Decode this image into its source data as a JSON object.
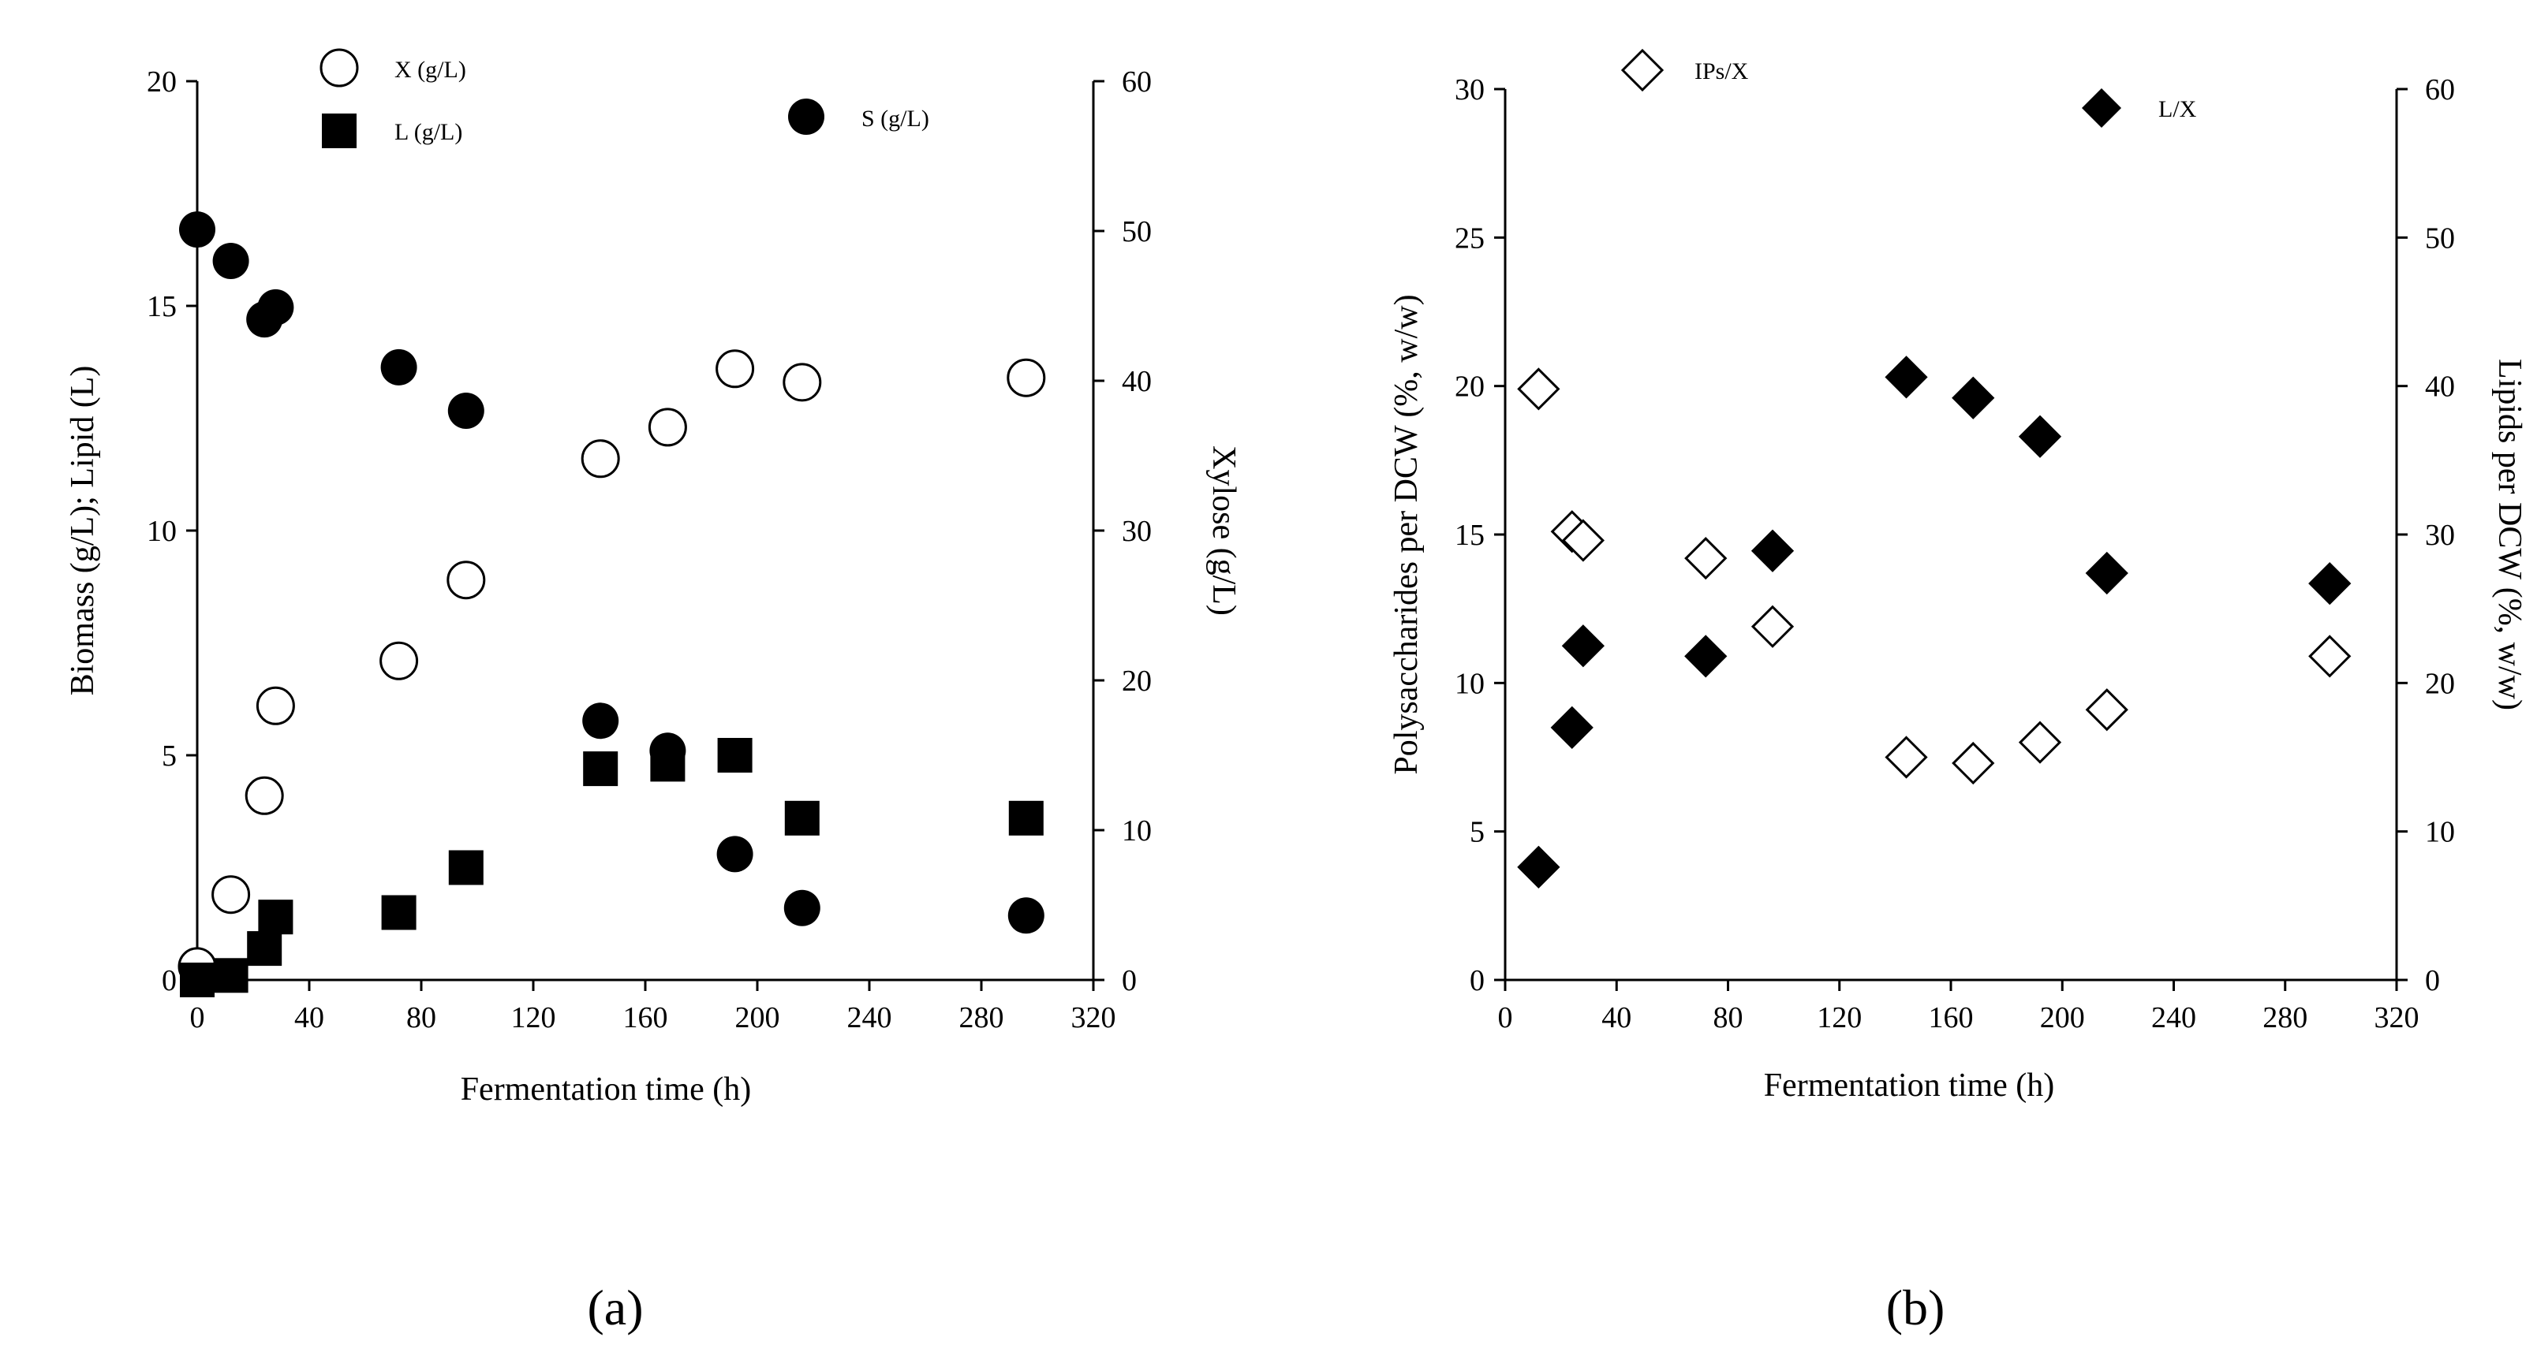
{
  "chart_data": [
    {
      "id": "a",
      "type": "scatter",
      "panel_label": "(a)",
      "xlabel": "Fermentation time (h)",
      "ylabel": "Biomass (g/L); Lipid (L)",
      "y2label": "Xylose (g/L)",
      "xlim": [
        0,
        320
      ],
      "ylim": [
        0,
        20
      ],
      "y2lim": [
        0,
        60
      ],
      "xticks": [
        "0",
        "40",
        "80",
        "120",
        "160",
        "200",
        "240",
        "280",
        "320"
      ],
      "yticks": [
        "0",
        "5",
        "10",
        "15",
        "20"
      ],
      "y2ticks": [
        "0",
        "10",
        "20",
        "30",
        "40",
        "50",
        "60"
      ],
      "legend_placement": "top",
      "series": [
        {
          "name": "X (g/L)",
          "marker": "circle-open",
          "axis": "left",
          "x": [
            0,
            12,
            24,
            28,
            72,
            96,
            144,
            168,
            192,
            216,
            296
          ],
          "y": [
            0.3,
            1.9,
            4.1,
            6.1,
            7.1,
            8.9,
            11.6,
            12.3,
            13.6,
            13.3,
            13.4
          ]
        },
        {
          "name": "L (g/L)",
          "marker": "square-filled",
          "axis": "left",
          "x": [
            0,
            12,
            24,
            28,
            72,
            96,
            144,
            168,
            192,
            216,
            296
          ],
          "y": [
            0,
            0.1,
            0.7,
            1.4,
            1.5,
            2.5,
            4.7,
            4.8,
            5.0,
            3.6,
            3.6
          ]
        },
        {
          "name": "S (g/L)",
          "marker": "circle-filled",
          "axis": "right",
          "x": [
            0,
            12,
            24,
            28,
            72,
            96,
            144,
            168,
            192,
            216,
            296
          ],
          "y": [
            50.1,
            48.0,
            44.1,
            44.9,
            40.9,
            38.0,
            17.3,
            15.3,
            8.4,
            4.8,
            4.3
          ]
        }
      ]
    },
    {
      "id": "b",
      "type": "scatter",
      "panel_label": "(b)",
      "xlabel": "Fermentation time (h)",
      "ylabel": "Polysaccharides per DCW (%, w/w)",
      "y2label": "Lipids per DCW (%, w/w)",
      "xlim": [
        0,
        320
      ],
      "ylim": [
        0,
        30
      ],
      "y2lim": [
        0,
        60
      ],
      "xticks": [
        "0",
        "40",
        "80",
        "120",
        "160",
        "200",
        "240",
        "280",
        "320"
      ],
      "yticks": [
        "0",
        "5",
        "10",
        "15",
        "20",
        "25",
        "30"
      ],
      "y2ticks": [
        "0",
        "10",
        "20",
        "30",
        "40",
        "50",
        "60"
      ],
      "legend_placement": "top",
      "series": [
        {
          "name": "IPs/X",
          "marker": "diamond-open",
          "axis": "left",
          "x": [
            12,
            24,
            28,
            72,
            96,
            144,
            168,
            192,
            216,
            296
          ],
          "y": [
            19.9,
            15.1,
            14.8,
            14.2,
            11.9,
            7.5,
            7.3,
            8.0,
            9.1,
            10.9
          ]
        },
        {
          "name": "L/X",
          "marker": "diamond-filled",
          "axis": "right",
          "x": [
            12,
            24,
            28,
            72,
            96,
            144,
            168,
            192,
            216,
            296
          ],
          "y": [
            7.6,
            17.0,
            22.5,
            21.8,
            28.9,
            40.6,
            39.2,
            36.6,
            27.4,
            26.7
          ]
        }
      ]
    }
  ]
}
